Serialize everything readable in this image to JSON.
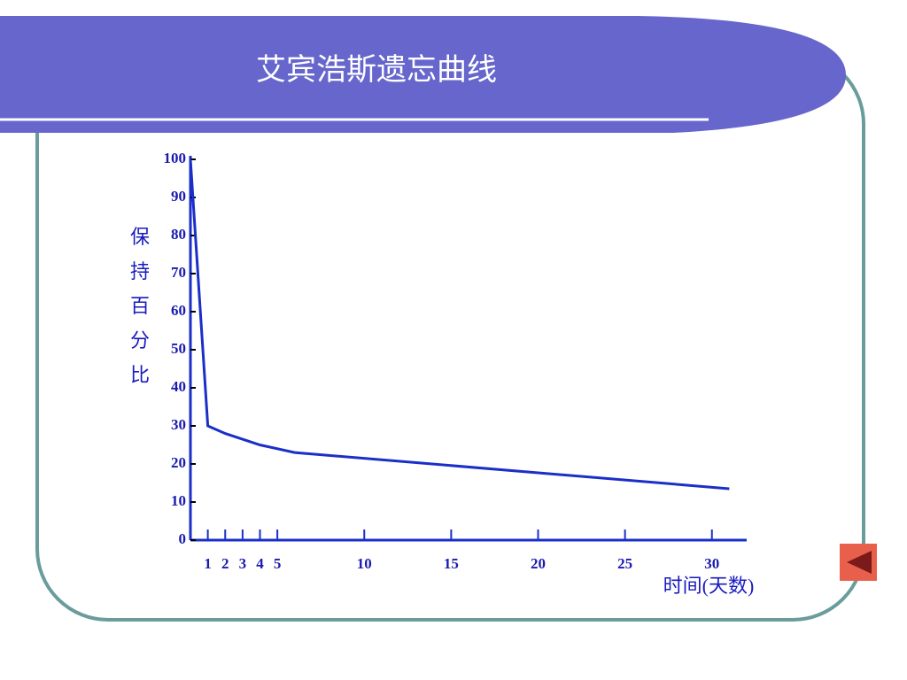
{
  "chart_data": {
    "type": "line",
    "title": "艾宾浩斯遗忘曲线",
    "x_label": "时间(天数)",
    "y_label": "保持百分比",
    "x": [
      0,
      1,
      2,
      3,
      4,
      6,
      31
    ],
    "series": [
      {
        "name": "保持百分比",
        "color": "#1a2fc8",
        "values": [
          100,
          30,
          28,
          26.5,
          25,
          23,
          13.5
        ]
      }
    ],
    "xlim": [
      0,
      32
    ],
    "xticks": [
      1,
      2,
      3,
      4,
      5,
      10,
      15,
      20,
      25,
      30
    ],
    "ylim": [
      0,
      100
    ],
    "yticks": [
      0,
      10,
      20,
      30,
      40,
      50,
      60,
      70,
      80,
      90,
      100
    ]
  }
}
